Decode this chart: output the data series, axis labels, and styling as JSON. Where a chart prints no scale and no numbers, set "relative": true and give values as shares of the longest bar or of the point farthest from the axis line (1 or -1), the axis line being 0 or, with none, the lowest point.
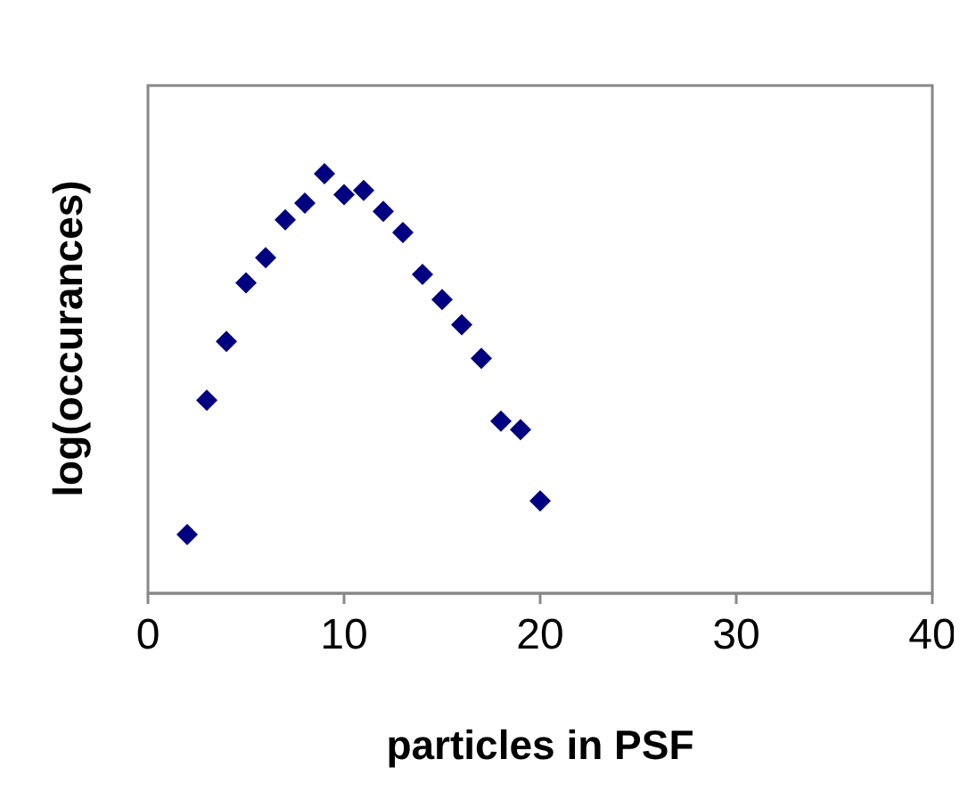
{
  "chart_data": {
    "type": "scatter",
    "xlabel": "particles in PSF",
    "ylabel": "log(occurances)",
    "relative": true,
    "marker": "diamond",
    "grid": false,
    "legend": false,
    "x": [
      2,
      3,
      4,
      5,
      6,
      7,
      8,
      9,
      10,
      11,
      12,
      13,
      14,
      15,
      16,
      17,
      18,
      19,
      20
    ],
    "series": [
      {
        "color": "#000080",
        "values": [
          0.14,
          0.46,
          0.6,
          0.74,
          0.8,
          0.89,
          0.93,
          1,
          0.95,
          0.96,
          0.91,
          0.86,
          0.76,
          0.7,
          0.64,
          0.56,
          0.41,
          0.39,
          0.22
        ]
      }
    ],
    "xlim": [
      0,
      40
    ],
    "xticks": [
      0,
      10,
      20,
      30,
      40
    ]
  }
}
